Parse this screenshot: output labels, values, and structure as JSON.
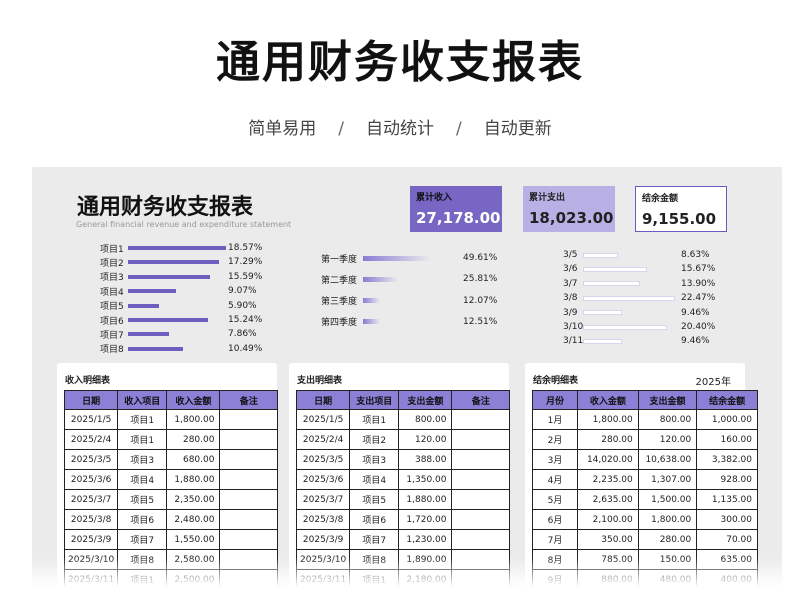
{
  "hero": {
    "title": "通用财务收支报表",
    "tags": [
      "简单易用",
      "自动统计",
      "自动更新"
    ],
    "separator": "/"
  },
  "doc": {
    "title": "通用财务收支报表",
    "subtitle": "General financial revenue and expenditure statement"
  },
  "kpis": [
    {
      "label": "累计收入",
      "value": "27,178.00"
    },
    {
      "label": "累计支出",
      "value": "18,023.00"
    },
    {
      "label": "结余金额",
      "value": "9,155.00"
    }
  ],
  "item_shares": [
    {
      "label": "项目1",
      "pct": "18.57%",
      "value": 18.57
    },
    {
      "label": "项目2",
      "pct": "17.29%",
      "value": 17.29
    },
    {
      "label": "项目3",
      "pct": "15.59%",
      "value": 15.59
    },
    {
      "label": "项目4",
      "pct": "9.07%",
      "value": 9.07
    },
    {
      "label": "项目5",
      "pct": "5.90%",
      "value": 5.9
    },
    {
      "label": "项目6",
      "pct": "15.24%",
      "value": 15.24
    },
    {
      "label": "项目7",
      "pct": "7.86%",
      "value": 7.86
    },
    {
      "label": "项目8",
      "pct": "10.49%",
      "value": 10.49
    }
  ],
  "quarter_shares": [
    {
      "label": "第一季度",
      "pct": "49.61%",
      "value": 49.61
    },
    {
      "label": "第二季度",
      "pct": "25.81%",
      "value": 25.81
    },
    {
      "label": "第三季度",
      "pct": "12.07%",
      "value": 12.07
    },
    {
      "label": "第四季度",
      "pct": "12.51%",
      "value": 12.51
    }
  ],
  "date_shares": [
    {
      "label": "3/5",
      "pct": "8.63%",
      "value": 8.63
    },
    {
      "label": "3/6",
      "pct": "15.67%",
      "value": 15.67
    },
    {
      "label": "3/7",
      "pct": "13.90%",
      "value": 13.9
    },
    {
      "label": "3/8",
      "pct": "22.47%",
      "value": 22.47
    },
    {
      "label": "3/9",
      "pct": "9.46%",
      "value": 9.46
    },
    {
      "label": "3/10",
      "pct": "20.40%",
      "value": 20.4
    },
    {
      "label": "3/11",
      "pct": "9.46%",
      "value": 9.46
    }
  ],
  "income_table": {
    "title": "收入明细表",
    "headers": [
      "日期",
      "收入项目",
      "收入金额",
      "备注"
    ],
    "rows": [
      [
        "2025/1/5",
        "项目1",
        "1,800.00",
        ""
      ],
      [
        "2025/2/4",
        "项目1",
        "280.00",
        ""
      ],
      [
        "2025/3/5",
        "项目3",
        "680.00",
        ""
      ],
      [
        "2025/3/6",
        "项目4",
        "1,880.00",
        ""
      ],
      [
        "2025/3/7",
        "项目5",
        "2,350.00",
        ""
      ],
      [
        "2025/3/8",
        "项目6",
        "2,480.00",
        ""
      ],
      [
        "2025/3/9",
        "项目7",
        "1,550.00",
        ""
      ],
      [
        "2025/3/10",
        "项目8",
        "2,580.00",
        ""
      ],
      [
        "2025/3/11",
        "项目1",
        "2,500.00",
        ""
      ]
    ]
  },
  "expense_table": {
    "title": "支出明细表",
    "headers": [
      "日期",
      "支出项目",
      "支出金额",
      "备注"
    ],
    "rows": [
      [
        "2025/1/5",
        "项目1",
        "800.00",
        ""
      ],
      [
        "2025/2/4",
        "项目2",
        "120.00",
        ""
      ],
      [
        "2025/3/5",
        "项目3",
        "388.00",
        ""
      ],
      [
        "2025/3/6",
        "项目4",
        "1,350.00",
        ""
      ],
      [
        "2025/3/7",
        "项目5",
        "1,880.00",
        ""
      ],
      [
        "2025/3/8",
        "项目6",
        "1,720.00",
        ""
      ],
      [
        "2025/3/9",
        "项目7",
        "1,230.00",
        ""
      ],
      [
        "2025/3/10",
        "项目8",
        "1,890.00",
        ""
      ],
      [
        "2025/3/11",
        "项目1",
        "2,180.00",
        ""
      ]
    ]
  },
  "balance_table": {
    "title": "结余明细表",
    "year": "2025年",
    "headers": [
      "月份",
      "收入金额",
      "支出金额",
      "结余金额"
    ],
    "rows": [
      [
        "1月",
        "1,800.00",
        "800.00",
        "1,000.00"
      ],
      [
        "2月",
        "280.00",
        "120.00",
        "160.00"
      ],
      [
        "3月",
        "14,020.00",
        "10,638.00",
        "3,382.00"
      ],
      [
        "4月",
        "2,235.00",
        "1,307.00",
        "928.00"
      ],
      [
        "5月",
        "2,635.00",
        "1,500.00",
        "1,135.00"
      ],
      [
        "6月",
        "2,100.00",
        "1,800.00",
        "300.00"
      ],
      [
        "7月",
        "350.00",
        "280.00",
        "70.00"
      ],
      [
        "8月",
        "785.00",
        "150.00",
        "635.00"
      ],
      [
        "9月",
        "880.00",
        "480.00",
        "400.00"
      ]
    ]
  },
  "colors": {
    "accent": "#7766c4",
    "accent_light": "#b9b1e6",
    "header": "#8b7fd6",
    "panel": "#ebebeb"
  }
}
